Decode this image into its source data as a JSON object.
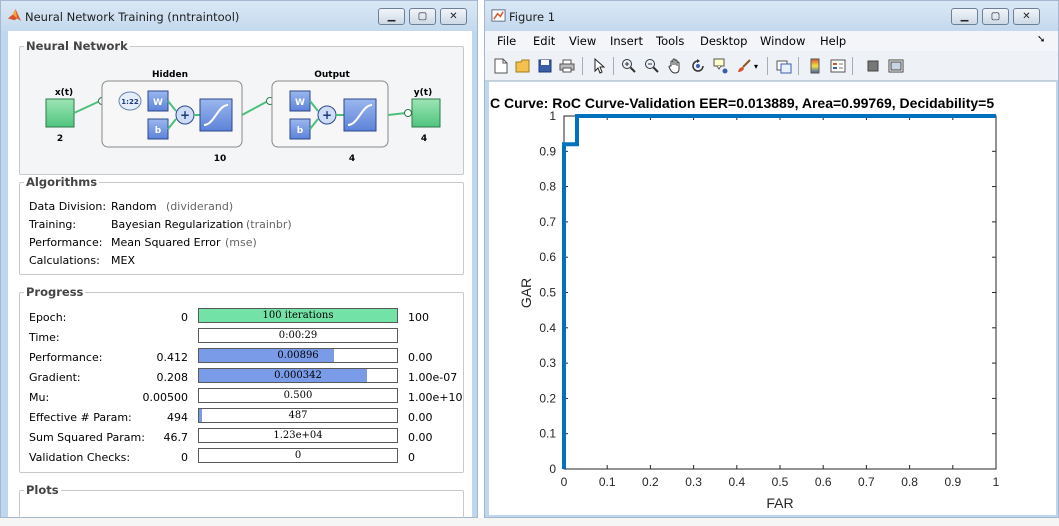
{
  "nntrain": {
    "title": "Neural Network Training (nntraintool)",
    "window_controls": [
      "minimize",
      "maximize",
      "close"
    ],
    "network": {
      "legend": "Neural Network",
      "input_label": "x(t)",
      "input_size": "2",
      "hidden_title": "Hidden",
      "hidden_delay": "1:22",
      "hidden_size": "10",
      "output_title": "Output",
      "output_size": "4",
      "output_label": "y(t)",
      "output_count": "4",
      "weight": "W",
      "bias": "b",
      "plus": "+"
    },
    "algorithms": {
      "legend": "Algorithms",
      "rows": [
        {
          "label": "Data Division:",
          "value": "Random",
          "note": "(dividerand)"
        },
        {
          "label": "Training:",
          "value": "Bayesian Regularization",
          "note": "(trainbr)"
        },
        {
          "label": "Performance:",
          "value": "Mean Squared Error",
          "note": "(mse)"
        },
        {
          "label": "Calculations:",
          "value": "MEX",
          "note": ""
        }
      ]
    },
    "progress": {
      "legend": "Progress",
      "rows": [
        {
          "label": "Epoch:",
          "start": "0",
          "bar_text": "100 iterations",
          "end": "100",
          "fill": 1.0,
          "fill_color": "#73e2a6"
        },
        {
          "label": "Time:",
          "start": "",
          "bar_text": "0:00:29",
          "end": "",
          "fill": 0,
          "fill_color": "#7a9be8"
        },
        {
          "label": "Performance:",
          "start": "0.412",
          "bar_text": "0.00896",
          "end": "0.00",
          "fill": 0.68,
          "fill_color": "#7a9be8"
        },
        {
          "label": "Gradient:",
          "start": "0.208",
          "bar_text": "0.000342",
          "end": "1.00e-07",
          "fill": 0.85,
          "fill_color": "#7a9be8"
        },
        {
          "label": "Mu:",
          "start": "0.00500",
          "bar_text": "0.500",
          "end": "1.00e+10",
          "fill": 0,
          "fill_color": "#7a9be8"
        },
        {
          "label": "Effective # Param:",
          "start": "494",
          "bar_text": "487",
          "end": "0.00",
          "fill": 0.014,
          "fill_color": "#7a9be8"
        },
        {
          "label": "Sum Squared Param:",
          "start": "46.7",
          "bar_text": "1.23e+04",
          "end": "0.00",
          "fill": 0,
          "fill_color": "#7a9be8"
        },
        {
          "label": "Validation Checks:",
          "start": "0",
          "bar_text": "0",
          "end": "0",
          "fill": 0,
          "fill_color": "#7a9be8"
        }
      ]
    },
    "plots_legend": "Plots"
  },
  "figure": {
    "title": "Figure 1",
    "menu": [
      "File",
      "Edit",
      "View",
      "Insert",
      "Tools",
      "Desktop",
      "Window",
      "Help"
    ],
    "toolbar_icons": [
      "new-file-icon",
      "open-folder-icon",
      "save-icon",
      "print-icon",
      "pointer-icon",
      "zoom-in-icon",
      "zoom-out-icon",
      "pan-icon",
      "rotate-icon",
      "data-cursor-icon",
      "brush-icon",
      "link-plot-icon",
      "colorbar-icon",
      "legend-icon",
      "hide-plot-tools-icon",
      "show-plot-tools-icon"
    ]
  },
  "chart_data": {
    "type": "line",
    "title": "C Curve: RoC Curve-Validation   EER=0.013889,   Area=0.99769,   Decidability=5",
    "xlabel": "FAR",
    "ylabel": "GAR",
    "xlim": [
      0,
      1
    ],
    "ylim": [
      0,
      1
    ],
    "xticks": [
      "0",
      "0.1",
      "0.2",
      "0.3",
      "0.4",
      "0.5",
      "0.6",
      "0.7",
      "0.8",
      "0.9",
      "1"
    ],
    "yticks": [
      "0",
      "0.1",
      "0.2",
      "0.3",
      "0.4",
      "0.5",
      "0.6",
      "0.7",
      "0.8",
      "0.9",
      "1"
    ],
    "grid": false,
    "series": [
      {
        "color": "#0072bd",
        "x": [
          0,
          0,
          0.03,
          0.03,
          1
        ],
        "y": [
          0,
          0.92,
          0.92,
          1,
          1
        ]
      }
    ]
  }
}
